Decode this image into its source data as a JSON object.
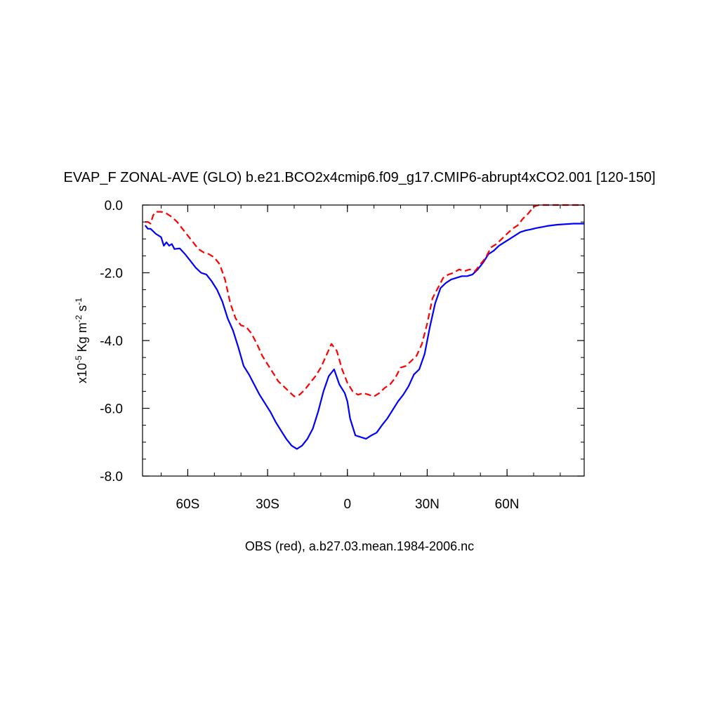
{
  "chart_data": {
    "type": "line",
    "title": "EVAP_F ZONAL-AVE (GLO) b.e21.BCO2x4cmip6.f09_g17.CMIP6-abrupt4xCO2.001 [120-150]",
    "xlabel": "OBS (red), a.b27.03.mean.1984-2006.nc",
    "ylabel": {
      "prefix": "x10",
      "exp1": "-5",
      "mid": " Kg m",
      "exp2": "-2",
      "mid2": " s",
      "exp3": "-1"
    },
    "xlim": [
      -77,
      89
    ],
    "ylim": [
      -8,
      0
    ],
    "x_ticks": [
      {
        "value": -60,
        "label": "60S"
      },
      {
        "value": -30,
        "label": "30S"
      },
      {
        "value": 0,
        "label": "0"
      },
      {
        "value": 30,
        "label": "30N"
      },
      {
        "value": 60,
        "label": "60N"
      }
    ],
    "y_ticks": [
      {
        "value": 0,
        "label": "0.0"
      },
      {
        "value": -2,
        "label": "-2.0"
      },
      {
        "value": -4,
        "label": "-4.0"
      },
      {
        "value": -6,
        "label": "-6.0"
      },
      {
        "value": -8,
        "label": "-8.0"
      }
    ],
    "x_minor_step": 10,
    "y_minor_step": 0.5,
    "grid": false,
    "series": [
      {
        "name": "",
        "color": "#0000ff",
        "style": "solid",
        "x": [
          -76,
          -75,
          -74,
          -72,
          -70,
          -69,
          -68,
          -67,
          -66,
          -65,
          -63,
          -61,
          -59,
          -57,
          -55,
          -53,
          -51,
          -49,
          -47,
          -45,
          -43,
          -41,
          -39,
          -37,
          -35,
          -33,
          -31,
          -29,
          -27,
          -25,
          -23,
          -21,
          -19,
          -17,
          -15,
          -13,
          -11,
          -9,
          -7,
          -5,
          -3,
          -1,
          0,
          1,
          3,
          5,
          7,
          9,
          11,
          13,
          15,
          17,
          19,
          21,
          23,
          25,
          27,
          29,
          31,
          33,
          35,
          37,
          39,
          41,
          43,
          45,
          47,
          49,
          51,
          53,
          55,
          57,
          59,
          61,
          63,
          65,
          67,
          69,
          71,
          73,
          75,
          77,
          79,
          81,
          83,
          85,
          87,
          89
        ],
        "y": [
          -0.6,
          -0.7,
          -0.7,
          -0.85,
          -0.95,
          -1.2,
          -1.1,
          -1.2,
          -1.15,
          -1.3,
          -1.28,
          -1.45,
          -1.65,
          -1.85,
          -2.0,
          -2.05,
          -2.25,
          -2.5,
          -2.85,
          -3.35,
          -3.7,
          -4.2,
          -4.75,
          -5.0,
          -5.3,
          -5.6,
          -5.85,
          -6.1,
          -6.4,
          -6.65,
          -6.9,
          -7.1,
          -7.2,
          -7.1,
          -6.9,
          -6.6,
          -6.1,
          -5.5,
          -5.05,
          -4.85,
          -5.3,
          -5.55,
          -5.8,
          -6.3,
          -6.8,
          -6.85,
          -6.9,
          -6.8,
          -6.72,
          -6.5,
          -6.3,
          -6.05,
          -5.8,
          -5.6,
          -5.35,
          -5.0,
          -4.85,
          -4.4,
          -3.6,
          -2.9,
          -2.45,
          -2.3,
          -2.2,
          -2.15,
          -2.1,
          -2.1,
          -2.05,
          -1.9,
          -1.7,
          -1.45,
          -1.35,
          -1.2,
          -1.1,
          -1.0,
          -0.9,
          -0.8,
          -0.75,
          -0.72,
          -0.68,
          -0.65,
          -0.62,
          -0.6,
          -0.58,
          -0.57,
          -0.56,
          -0.55,
          -0.55,
          -0.55
        ]
      },
      {
        "name": "OBS",
        "color": "#ff0000",
        "style": "dashed",
        "x": [
          -76,
          -75,
          -74,
          -73,
          -72,
          -70,
          -68,
          -66,
          -64,
          -62,
          -60,
          -58,
          -56,
          -54,
          -52,
          -50,
          -48,
          -46,
          -44,
          -42,
          -40,
          -38,
          -36,
          -34,
          -32,
          -30,
          -28,
          -26,
          -24,
          -22,
          -20,
          -18,
          -16,
          -14,
          -12,
          -10,
          -8,
          -6,
          -4,
          -2,
          0,
          2,
          4,
          6,
          8,
          10,
          12,
          14,
          16,
          18,
          20,
          22,
          24,
          26,
          28,
          30,
          32,
          34,
          36,
          38,
          40,
          42,
          44,
          46,
          48,
          50,
          52,
          54,
          56,
          58,
          60,
          62,
          64,
          66,
          68,
          70,
          72,
          74,
          76,
          78,
          80,
          82,
          84,
          86,
          88,
          89
        ],
        "y": [
          -0.5,
          -0.5,
          -0.55,
          -0.3,
          -0.2,
          -0.2,
          -0.25,
          -0.35,
          -0.5,
          -0.7,
          -0.9,
          -1.1,
          -1.3,
          -1.4,
          -1.45,
          -1.55,
          -1.75,
          -2.2,
          -2.9,
          -3.35,
          -3.55,
          -3.6,
          -3.8,
          -4.1,
          -4.45,
          -4.7,
          -4.95,
          -5.2,
          -5.35,
          -5.5,
          -5.65,
          -5.6,
          -5.45,
          -5.25,
          -5.05,
          -4.8,
          -4.45,
          -4.1,
          -4.3,
          -4.85,
          -5.25,
          -5.5,
          -5.6,
          -5.55,
          -5.6,
          -5.65,
          -5.55,
          -5.4,
          -5.3,
          -5.1,
          -4.8,
          -4.75,
          -4.6,
          -4.45,
          -4.1,
          -3.5,
          -2.75,
          -2.45,
          -2.15,
          -2.05,
          -2.0,
          -1.9,
          -1.95,
          -1.9,
          -1.95,
          -1.75,
          -1.55,
          -1.25,
          -1.15,
          -1.0,
          -0.85,
          -0.7,
          -0.6,
          -0.4,
          -0.25,
          -0.05,
          -0.0,
          -0.0,
          -0.0,
          -0.0,
          -0.0,
          -0.0,
          -0.0,
          -0.0,
          -0.0,
          -0.0
        ]
      }
    ]
  }
}
